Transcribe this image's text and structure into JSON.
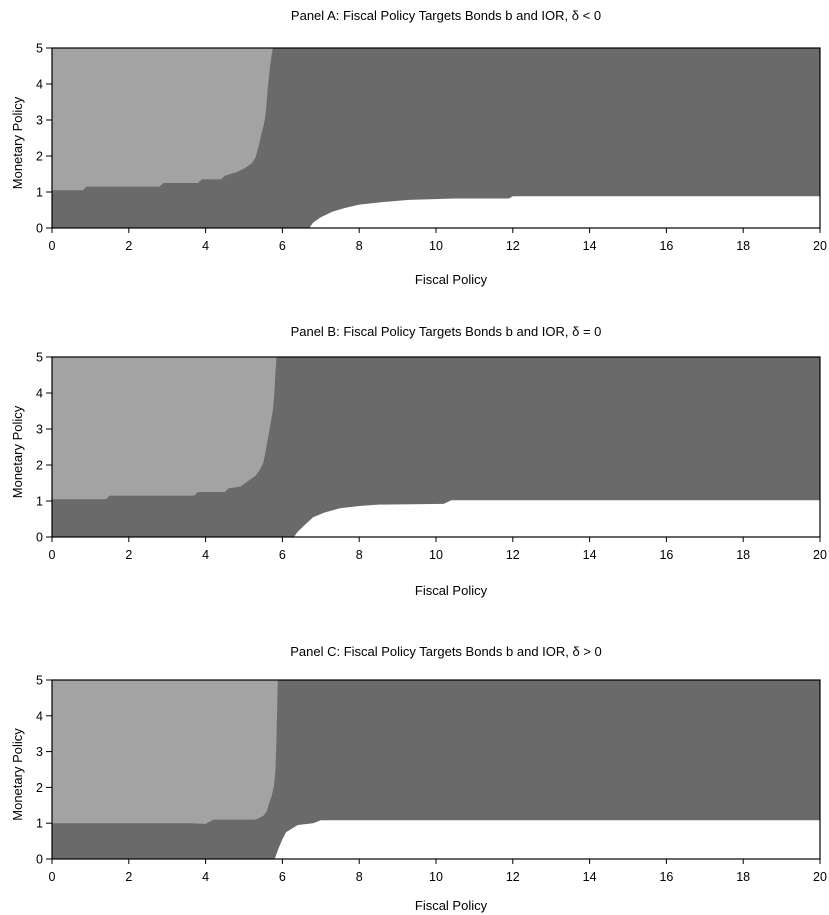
{
  "chart_data": [
    {
      "type": "heatmap",
      "title": "Panel A: Fiscal Policy Targets Bonds b and IOR,  δ < 0",
      "xlabel": "Fiscal Policy",
      "ylabel": "Monetary Policy",
      "xlim": [
        0,
        20
      ],
      "ylim": [
        0,
        5
      ],
      "xticks": [
        "0",
        "2",
        "4",
        "6",
        "8",
        "10",
        "12",
        "14",
        "16",
        "18",
        "20"
      ],
      "yticks": [
        "0",
        "1",
        "2",
        "3",
        "4",
        "5"
      ],
      "grid": false,
      "colors": {
        "background": "#6a6a6a",
        "light_region": "#a3a3a3",
        "white_region": "#ffffff"
      },
      "regions": [
        {
          "color": "light_region",
          "boundary": [
            [
              0,
              1.05
            ],
            [
              0.8,
              1.05
            ],
            [
              0.9,
              1.15
            ],
            [
              2.8,
              1.15
            ],
            [
              2.9,
              1.25
            ],
            [
              3.8,
              1.25
            ],
            [
              3.9,
              1.35
            ],
            [
              4.4,
              1.35
            ],
            [
              4.5,
              1.45
            ],
            [
              4.8,
              1.55
            ],
            [
              5.0,
              1.65
            ],
            [
              5.2,
              1.8
            ],
            [
              5.3,
              1.95
            ],
            [
              5.35,
              2.15
            ],
            [
              5.4,
              2.35
            ],
            [
              5.45,
              2.6
            ],
            [
              5.5,
              2.8
            ],
            [
              5.55,
              3.05
            ],
            [
              5.58,
              3.35
            ],
            [
              5.6,
              3.6
            ],
            [
              5.62,
              3.9
            ],
            [
              5.65,
              4.2
            ],
            [
              5.68,
              4.5
            ],
            [
              5.72,
              4.8
            ],
            [
              5.75,
              5.0
            ],
            [
              0,
              5.0
            ]
          ]
        },
        {
          "color": "white_region",
          "boundary": [
            [
              6.7,
              0
            ],
            [
              6.8,
              0.15
            ],
            [
              7.0,
              0.3
            ],
            [
              7.3,
              0.45
            ],
            [
              7.6,
              0.55
            ],
            [
              8.0,
              0.65
            ],
            [
              8.6,
              0.72
            ],
            [
              9.3,
              0.78
            ],
            [
              10.5,
              0.82
            ],
            [
              11.9,
              0.82
            ],
            [
              12.0,
              0.88
            ],
            [
              20,
              0.88
            ],
            [
              20,
              0
            ]
          ]
        }
      ]
    },
    {
      "type": "heatmap",
      "title": "Panel B: Fiscal Policy Targets Bonds b and IOR, δ = 0",
      "xlabel": "Fiscal Policy",
      "ylabel": "Monetary Policy",
      "xlim": [
        0,
        20
      ],
      "ylim": [
        0,
        5
      ],
      "xticks": [
        "0",
        "2",
        "4",
        "6",
        "8",
        "10",
        "12",
        "14",
        "16",
        "18",
        "20"
      ],
      "yticks": [
        "0",
        "1",
        "2",
        "3",
        "4",
        "5"
      ],
      "grid": false,
      "colors": {
        "background": "#6a6a6a",
        "light_region": "#a3a3a3",
        "white_region": "#ffffff"
      },
      "regions": [
        {
          "color": "light_region",
          "boundary": [
            [
              0,
              1.05
            ],
            [
              1.4,
              1.05
            ],
            [
              1.5,
              1.15
            ],
            [
              3.7,
              1.15
            ],
            [
              3.8,
              1.25
            ],
            [
              4.5,
              1.25
            ],
            [
              4.6,
              1.35
            ],
            [
              4.9,
              1.4
            ],
            [
              5.1,
              1.55
            ],
            [
              5.3,
              1.7
            ],
            [
              5.4,
              1.85
            ],
            [
              5.5,
              2.05
            ],
            [
              5.55,
              2.3
            ],
            [
              5.6,
              2.6
            ],
            [
              5.65,
              2.9
            ],
            [
              5.7,
              3.2
            ],
            [
              5.75,
              3.5
            ],
            [
              5.78,
              3.85
            ],
            [
              5.8,
              4.2
            ],
            [
              5.82,
              4.6
            ],
            [
              5.85,
              5.0
            ],
            [
              0,
              5.0
            ]
          ]
        },
        {
          "color": "white_region",
          "boundary": [
            [
              6.3,
              0
            ],
            [
              6.4,
              0.15
            ],
            [
              6.6,
              0.35
            ],
            [
              6.8,
              0.55
            ],
            [
              7.1,
              0.68
            ],
            [
              7.5,
              0.8
            ],
            [
              8.0,
              0.86
            ],
            [
              8.5,
              0.9
            ],
            [
              10.2,
              0.92
            ],
            [
              10.4,
              1.02
            ],
            [
              20,
              1.02
            ],
            [
              20,
              0
            ]
          ]
        }
      ]
    },
    {
      "type": "heatmap",
      "title": "Panel C: Fiscal Policy Targets Bonds b and IOR, δ > 0",
      "xlabel": "Fiscal Policy",
      "ylabel": "Monetary Policy",
      "xlim": [
        0,
        20
      ],
      "ylim": [
        0,
        5
      ],
      "xticks": [
        "0",
        "2",
        "4",
        "6",
        "8",
        "10",
        "12",
        "14",
        "16",
        "18",
        "20"
      ],
      "yticks": [
        "0",
        "1",
        "2",
        "3",
        "4",
        "5"
      ],
      "grid": false,
      "colors": {
        "background": "#6a6a6a",
        "light_region": "#a3a3a3",
        "white_region": "#ffffff"
      },
      "regions": [
        {
          "color": "light_region",
          "boundary": [
            [
              0,
              1.0
            ],
            [
              3.6,
              1.0
            ],
            [
              4.0,
              0.98
            ],
            [
              4.2,
              1.1
            ],
            [
              5.3,
              1.1
            ],
            [
              5.5,
              1.2
            ],
            [
              5.6,
              1.35
            ],
            [
              5.65,
              1.55
            ],
            [
              5.72,
              1.75
            ],
            [
              5.78,
              2.05
            ],
            [
              5.82,
              2.5
            ],
            [
              5.84,
              3.2
            ],
            [
              5.86,
              4.0
            ],
            [
              5.88,
              5.0
            ],
            [
              0,
              5.0
            ]
          ]
        },
        {
          "color": "white_region",
          "boundary": [
            [
              5.8,
              0
            ],
            [
              5.9,
              0.3
            ],
            [
              6.0,
              0.55
            ],
            [
              6.1,
              0.75
            ],
            [
              6.4,
              0.95
            ],
            [
              6.8,
              1.0
            ],
            [
              7.0,
              1.08
            ],
            [
              20,
              1.08
            ],
            [
              20,
              0
            ]
          ]
        }
      ]
    }
  ]
}
